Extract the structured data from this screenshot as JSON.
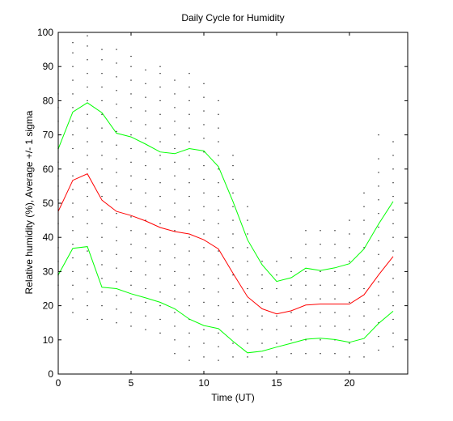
{
  "chart_data": {
    "type": "line",
    "title": "Daily Cycle for Humidity",
    "xlabel": "Time (UT)",
    "ylabel": "Relative humidity (%), Average +/- 1 sigma",
    "xlim": [
      0,
      24
    ],
    "ylim": [
      0,
      100
    ],
    "xticks": [
      0,
      5,
      10,
      15,
      20
    ],
    "yticks": [
      0,
      10,
      20,
      30,
      40,
      50,
      60,
      70,
      80,
      90,
      100
    ],
    "grid": false,
    "x": [
      0,
      1,
      2,
      3,
      4,
      5,
      6,
      7,
      8,
      9,
      10,
      11,
      12,
      13,
      14,
      15,
      16,
      17,
      18,
      19,
      20,
      21,
      22,
      23
    ],
    "series": [
      {
        "role": "plus-sigma",
        "color": "#00ff00",
        "values": [
          65.9,
          76.7,
          79.4,
          76.5,
          70.5,
          69.4,
          67.3,
          65.0,
          64.5,
          66.0,
          65.3,
          60.7,
          50.5,
          39.3,
          32.0,
          27.1,
          28.2,
          31.0,
          30.3,
          31.1,
          32.3,
          36.6,
          43.9,
          50.5
        ]
      },
      {
        "role": "average",
        "color": "#ff0000",
        "values": [
          47.6,
          56.7,
          58.6,
          50.9,
          47.6,
          46.4,
          44.8,
          42.9,
          41.7,
          41.0,
          39.3,
          36.6,
          29.5,
          22.6,
          19.1,
          17.6,
          18.5,
          20.2,
          20.5,
          20.5,
          20.5,
          23.2,
          29.0,
          34.4
        ]
      },
      {
        "role": "minus-sigma",
        "color": "#00ff00",
        "values": [
          29.0,
          36.8,
          37.3,
          25.4,
          25.0,
          23.5,
          22.3,
          21.0,
          19.1,
          16.1,
          14.2,
          13.3,
          9.6,
          6.2,
          6.7,
          7.9,
          9.0,
          10.2,
          10.5,
          10.1,
          9.3,
          10.4,
          14.8,
          18.4
        ]
      }
    ],
    "scatter": {
      "color": "#000000",
      "columns": [
        {
          "x": 0,
          "y": [
            26,
            29,
            33,
            37,
            40,
            44,
            48,
            51,
            55,
            58,
            62,
            66,
            70,
            74,
            78,
            82
          ]
        },
        {
          "x": 1,
          "y": [
            18,
            22,
            26,
            30,
            34,
            38,
            42,
            46,
            50,
            54,
            58,
            62,
            66,
            70,
            74,
            78,
            82,
            86,
            90,
            94,
            97
          ]
        },
        {
          "x": 2,
          "y": [
            16,
            20,
            24,
            28,
            32,
            36,
            40,
            44,
            48,
            52,
            56,
            60,
            64,
            68,
            72,
            76,
            80,
            84,
            88,
            92,
            96,
            99
          ]
        },
        {
          "x": 3,
          "y": [
            16,
            20,
            24,
            28,
            32,
            36,
            40,
            44,
            48,
            52,
            56,
            60,
            64,
            68,
            72,
            76,
            80,
            84,
            88,
            92,
            95
          ]
        },
        {
          "x": 4,
          "y": [
            15,
            19,
            23,
            27,
            31,
            35,
            39,
            43,
            47,
            51,
            55,
            59,
            63,
            67,
            71,
            75,
            79,
            83,
            87,
            91,
            95
          ]
        },
        {
          "x": 5,
          "y": [
            14,
            18,
            22,
            26,
            30,
            34,
            38,
            42,
            46,
            50,
            54,
            58,
            62,
            66,
            70,
            74,
            78,
            82,
            86,
            90,
            93
          ]
        },
        {
          "x": 6,
          "y": [
            13,
            17,
            21,
            25,
            29,
            33,
            37,
            41,
            45,
            49,
            53,
            57,
            61,
            65,
            69,
            73,
            77,
            81,
            85,
            89
          ]
        },
        {
          "x": 7,
          "y": [
            12,
            16,
            20,
            24,
            28,
            32,
            36,
            40,
            44,
            48,
            52,
            56,
            60,
            64,
            68,
            72,
            76,
            80,
            84,
            88,
            90
          ]
        },
        {
          "x": 8,
          "y": [
            6,
            10,
            14,
            18,
            22,
            26,
            30,
            34,
            38,
            42,
            46,
            50,
            54,
            58,
            62,
            66,
            70,
            74,
            78,
            82,
            86
          ]
        },
        {
          "x": 9,
          "y": [
            4,
            8,
            12,
            16,
            20,
            24,
            28,
            32,
            36,
            40,
            44,
            48,
            52,
            56,
            60,
            64,
            68,
            72,
            76,
            80,
            84,
            88
          ]
        },
        {
          "x": 10,
          "y": [
            5,
            9,
            13,
            17,
            21,
            25,
            29,
            33,
            37,
            41,
            45,
            49,
            53,
            57,
            61,
            65,
            69,
            73,
            77,
            81,
            85
          ]
        },
        {
          "x": 11,
          "y": [
            4,
            8,
            12,
            16,
            20,
            24,
            28,
            32,
            36,
            40,
            44,
            48,
            52,
            56,
            60,
            64,
            68,
            72,
            76,
            80
          ]
        },
        {
          "x": 12,
          "y": [
            5,
            9,
            13,
            17,
            21,
            25,
            29,
            33,
            37,
            41,
            45,
            49,
            53,
            57,
            61,
            64
          ]
        },
        {
          "x": 13,
          "y": [
            5,
            9,
            13,
            17,
            21,
            25,
            29,
            33,
            37,
            41,
            45,
            49
          ]
        },
        {
          "x": 14,
          "y": [
            5,
            9,
            13,
            17,
            21,
            25,
            29,
            33
          ]
        },
        {
          "x": 15,
          "y": [
            5,
            9,
            13,
            17,
            21,
            25,
            29,
            33
          ]
        },
        {
          "x": 16,
          "y": [
            6,
            10,
            14,
            18,
            22,
            26,
            30,
            34
          ]
        },
        {
          "x": 17,
          "y": [
            6,
            10,
            14,
            18,
            22,
            26,
            30,
            34,
            38,
            42
          ]
        },
        {
          "x": 18,
          "y": [
            6,
            10,
            14,
            18,
            22,
            26,
            30,
            34,
            38,
            42
          ]
        },
        {
          "x": 19,
          "y": [
            6,
            10,
            14,
            18,
            22,
            26,
            30,
            34,
            38,
            42
          ]
        },
        {
          "x": 20,
          "y": [
            5,
            9,
            13,
            17,
            21,
            25,
            29,
            33,
            37,
            41,
            45
          ]
        },
        {
          "x": 21,
          "y": [
            5,
            9,
            13,
            17,
            21,
            25,
            29,
            33,
            37,
            41,
            45,
            49,
            53
          ]
        },
        {
          "x": 22,
          "y": [
            7,
            11,
            15,
            19,
            23,
            27,
            31,
            35,
            39,
            43,
            47,
            51,
            55,
            59,
            63,
            70
          ]
        },
        {
          "x": 23,
          "y": [
            8,
            12,
            16,
            20,
            24,
            28,
            32,
            36,
            40,
            44,
            48,
            52,
            56,
            60,
            64,
            68
          ]
        }
      ]
    }
  }
}
